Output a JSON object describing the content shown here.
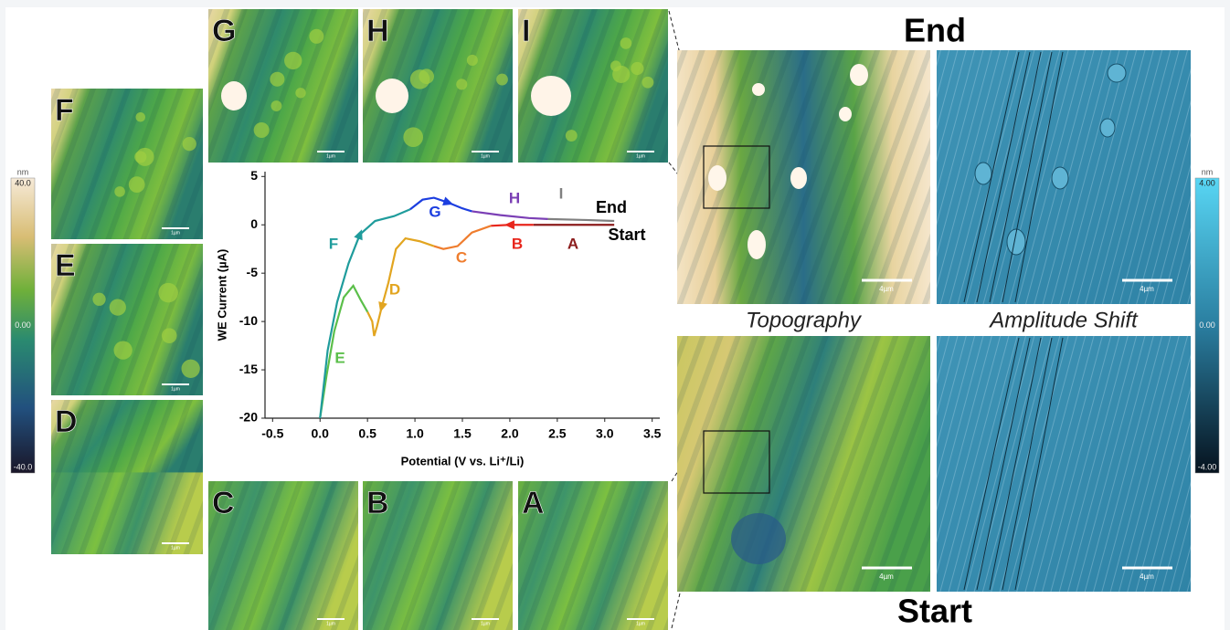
{
  "chart_data": {
    "type": "line",
    "x_label": "Potential (V vs. Li⁺/Li)",
    "y_label": "WE Current (µA)",
    "xlim": [
      -0.58,
      3.58
    ],
    "ylim": [
      -20,
      5.5
    ],
    "xticks": [
      -0.5,
      {
        "value": 0,
        "label": "0.0"
      },
      0.5,
      {
        "value": 1,
        "label": "1.0"
      },
      1.5,
      {
        "value": 2,
        "label": "2.0"
      },
      2.5,
      {
        "value": 3,
        "label": "3.0"
      },
      3.5
    ],
    "yticks": [
      5,
      0,
      -5,
      -10,
      -15,
      -20
    ],
    "series": [
      {
        "name": "A",
        "color": "#8b1c1c",
        "x": [
          3.1,
          2.8,
          2.5,
          2.25
        ],
        "values": [
          0,
          0,
          0,
          0
        ]
      },
      {
        "name": "B",
        "color": "#e8261c",
        "x": [
          2.25,
          2.0,
          1.8
        ],
        "values": [
          0,
          0,
          -0.1
        ]
      },
      {
        "name": "C",
        "color": "#ef7d2e",
        "x": [
          1.8,
          1.6,
          1.45,
          1.3,
          1.2
        ],
        "values": [
          -0.1,
          -0.8,
          -2.2,
          -2.5,
          -2.2
        ]
      },
      {
        "name": "D",
        "color": "#e2a520",
        "x": [
          1.2,
          1.05,
          0.9,
          0.8,
          0.72,
          0.65,
          0.6,
          0.57,
          0.55,
          0.5
        ],
        "values": [
          -2.2,
          -1.7,
          -1.4,
          -2.5,
          -6,
          -8.5,
          -10.5,
          -11.5,
          -10,
          -9
        ]
      },
      {
        "name": "E",
        "color": "#5bbf4a",
        "x": [
          0.5,
          0.43,
          0.35,
          0.25,
          0.15,
          0.07,
          0.0
        ],
        "values": [
          -9,
          -7.8,
          -6.3,
          -7.5,
          -11,
          -15.5,
          -20
        ]
      },
      {
        "name": "F",
        "color": "#1f9c9c",
        "x": [
          0.0,
          0.08,
          0.18,
          0.3,
          0.42,
          0.58,
          0.78,
          0.95
        ],
        "values": [
          -20,
          -13,
          -8,
          -4,
          -1,
          0.4,
          0.9,
          1.6
        ]
      },
      {
        "name": "G",
        "color": "#1c3ee0",
        "x": [
          0.95,
          1.08,
          1.2,
          1.35,
          1.5,
          1.6
        ],
        "values": [
          1.6,
          2.6,
          2.8,
          2.3,
          1.7,
          1.4
        ]
      },
      {
        "name": "H",
        "color": "#7b3fb5",
        "x": [
          1.6,
          1.9,
          2.2,
          2.4
        ],
        "values": [
          1.4,
          1.0,
          0.7,
          0.6
        ]
      },
      {
        "name": "I",
        "color": "#808080",
        "x": [
          2.4,
          2.8,
          3.1
        ],
        "values": [
          0.6,
          0.5,
          0.4
        ]
      }
    ],
    "annotations": [
      "End",
      "Start"
    ]
  },
  "afm_panels": [
    {
      "label": "G",
      "scale_bar": "1µm"
    },
    {
      "label": "H",
      "scale_bar": "1µm"
    },
    {
      "label": "I",
      "scale_bar": "1µm"
    },
    {
      "label": "F",
      "scale_bar": "1µm"
    },
    {
      "label": "E",
      "scale_bar": "1µm"
    },
    {
      "label": "D",
      "scale_bar": "1µm"
    },
    {
      "label": "C",
      "scale_bar": "1µm"
    },
    {
      "label": "B",
      "scale_bar": "1µm"
    },
    {
      "label": "A",
      "scale_bar": "1µm"
    }
  ],
  "large_panels": [
    {
      "scale_bar": "4µm"
    },
    {
      "scale_bar": "4µm"
    },
    {
      "scale_bar": "4µm"
    },
    {
      "scale_bar": "4µm"
    }
  ],
  "headings": {
    "end": "End",
    "start": "Start",
    "topography": "Topography",
    "amplitude": "Amplitude Shift"
  },
  "colorbars": [
    {
      "unit": "nm",
      "ticks": [
        {
          "value": 40,
          "label": "40.0"
        },
        {
          "value": 0,
          "label": "0.00"
        },
        {
          "value": -40,
          "label": "-40.0"
        }
      ]
    },
    {
      "unit": "nm",
      "ticks": [
        {
          "value": 4,
          "label": "4.00"
        },
        {
          "value": 0,
          "label": "0.00"
        },
        {
          "value": -4,
          "label": "-4.00"
        }
      ]
    }
  ]
}
